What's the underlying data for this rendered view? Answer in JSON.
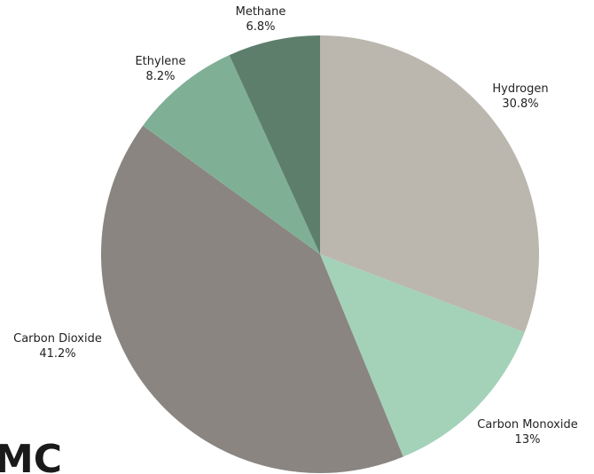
{
  "chart_data": {
    "type": "pie",
    "title": "",
    "slices": [
      {
        "label": "Hydrogen",
        "value": 30.8,
        "value_label": "30.8%",
        "color": "#bbb7ae"
      },
      {
        "label": "Carbon Monoxide",
        "value": 13.0,
        "value_label": "13%",
        "color": "#a3d2b8"
      },
      {
        "label": "Carbon Dioxide",
        "value": 41.2,
        "value_label": "41.2%",
        "color": "#8a8580"
      },
      {
        "label": "Ethylene",
        "value": 8.2,
        "value_label": "8.2%",
        "color": "#7fb095"
      },
      {
        "label": "Methane",
        "value": 6.8,
        "value_label": "6.8%",
        "color": "#5e7e6c"
      }
    ],
    "start_angle": "12 o'clock",
    "direction": "clockwise",
    "legend": "none"
  },
  "watermark": {
    "text": "MC"
  }
}
